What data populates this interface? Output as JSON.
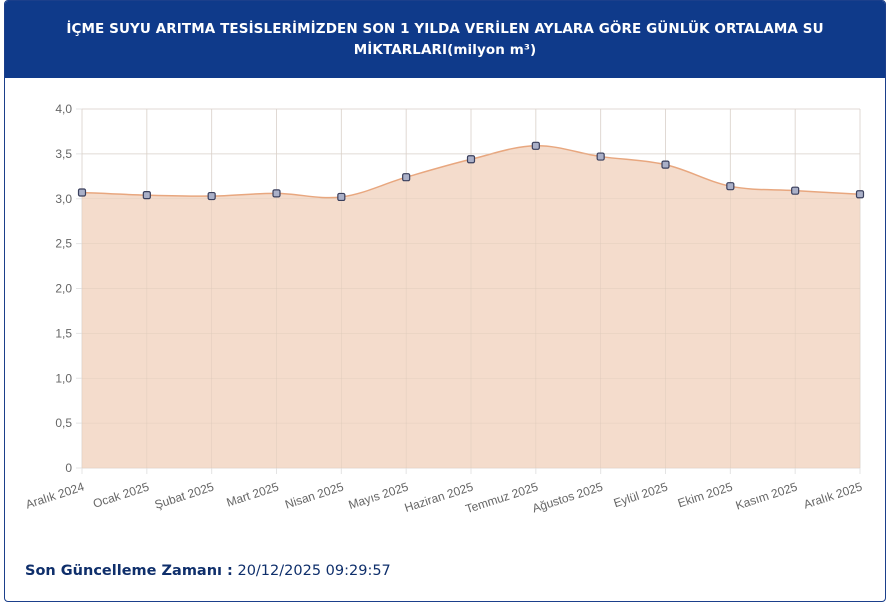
{
  "header": {
    "title": "İÇME SUYU ARITMA TESİSLERİMİZDEN SON 1 YILDA VERİLEN AYLARA GÖRE GÜNLÜK ORTALAMA SU MİKTARLARI(milyon m³)"
  },
  "footer": {
    "label": "Son Güncelleme Zamanı :",
    "value": "20/12/2025 09:29:57"
  },
  "chart_data": {
    "type": "area",
    "categories": [
      "Aralık 2024",
      "Ocak 2025",
      "Şubat 2025",
      "Mart 2025",
      "Nisan 2025",
      "Mayıs 2025",
      "Haziran 2025",
      "Temmuz 2025",
      "Ağustos 2025",
      "Eylül 2025",
      "Ekim 2025",
      "Kasım 2025",
      "Aralık 2025"
    ],
    "values": [
      3.07,
      3.04,
      3.03,
      3.06,
      3.02,
      3.24,
      3.44,
      3.59,
      3.47,
      3.38,
      3.14,
      3.09,
      3.05
    ],
    "ylim": [
      0,
      4
    ],
    "yticks": [
      "0",
      "0,5",
      "1,0",
      "1,5",
      "2,0",
      "2,5",
      "3,0",
      "3,5",
      "4,0"
    ],
    "grid": true,
    "colors": {
      "fill": "#f3dac9",
      "line": "#e8a77f",
      "point_fill": "#aab0c8",
      "point_stroke": "#3a3f5c",
      "grid": "#e4e4e4",
      "header": "#0f3a8a"
    }
  }
}
